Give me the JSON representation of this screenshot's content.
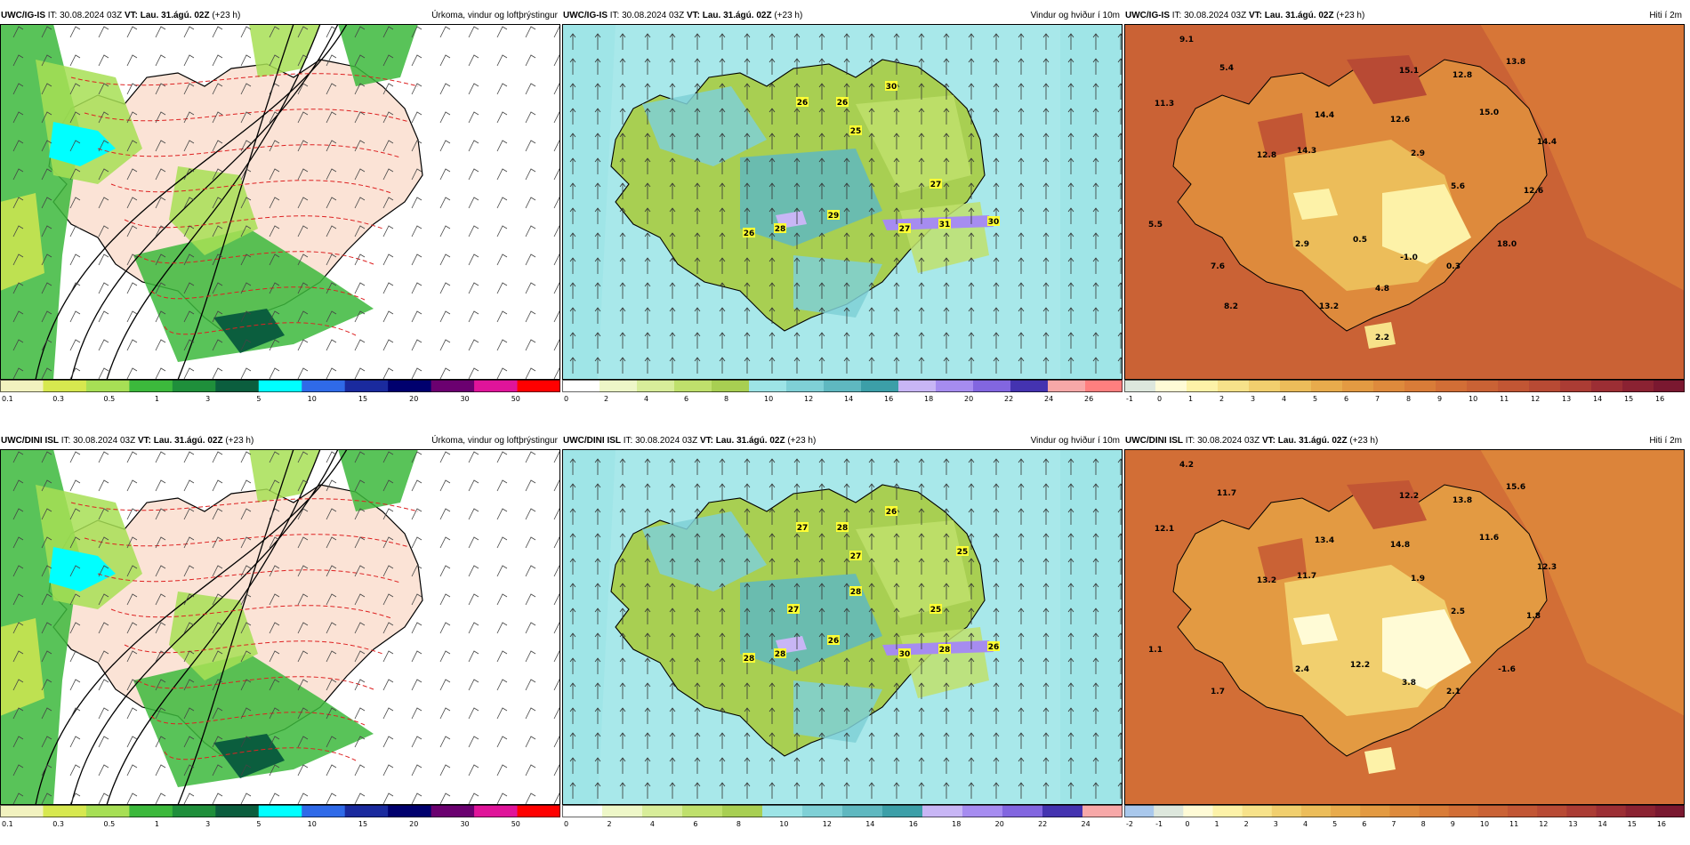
{
  "panels": [
    {
      "model": "UWC/IG-IS",
      "it_label": "IT:",
      "it": "30.08.2024 03Z",
      "vt_label": "VT:",
      "vt": "Lau. 31.ágú. 02Z",
      "lead": "(+23 h)",
      "title": "Úrkoma, vindur og loftþrýstingur",
      "kind": "precip",
      "colorbar": {
        "ticks": [
          "0.1",
          "0.3",
          "0.5",
          "1",
          "3",
          "5",
          "10",
          "15",
          "20",
          "30",
          "50"
        ],
        "colors": [
          "#f2f2bf",
          "#d7e84f",
          "#a7df55",
          "#3cb93c",
          "#1f8f3b",
          "#0b5e3e",
          "#00ffff",
          "#2f6ae8",
          "#1a2a9e",
          "#00006e",
          "#6b0070",
          "#e0149a",
          "#ff0000"
        ]
      },
      "map_labels": []
    },
    {
      "model": "UWC/IG-IS",
      "it_label": "IT:",
      "it": "30.08.2024 03Z",
      "vt_label": "VT:",
      "vt": "Lau. 31.ágú. 02Z",
      "lead": "(+23 h)",
      "title": "Vindur og hviður í 10m",
      "kind": "wind",
      "colorbar": {
        "ticks": [
          "0",
          "2",
          "4",
          "6",
          "8",
          "10",
          "12",
          "14",
          "16",
          "18",
          "20",
          "22",
          "24",
          "26"
        ],
        "colors": [
          "#ffffff",
          "#eef7c8",
          "#d8ed9a",
          "#bfe06c",
          "#a8cf52",
          "#9de4e6",
          "#7fd0d6",
          "#5fb8c0",
          "#3c9fa8",
          "#c8b6f5",
          "#a68cf0",
          "#8266e0",
          "#4433b0",
          "#f7a8a8",
          "#ff7f7f"
        ]
      },
      "map_labels": [
        "26",
        "26",
        "30",
        "25",
        "27",
        "29",
        "28",
        "26",
        "27",
        "31",
        "30"
      ]
    },
    {
      "model": "UWC/IG-IS",
      "it_label": "IT:",
      "it": "30.08.2024 03Z",
      "vt_label": "VT:",
      "vt": "Lau. 31.ágú. 02Z",
      "lead": "(+23 h)",
      "title": "Hiti í 2m",
      "kind": "temp",
      "colorbar": {
        "ticks": [
          "-1",
          "0",
          "1",
          "2",
          "3",
          "4",
          "5",
          "6",
          "7",
          "8",
          "9",
          "10",
          "11",
          "12",
          "13",
          "14",
          "15",
          "16"
        ],
        "colors": [
          "#dde7dd",
          "#fffbd6",
          "#fdf2a8",
          "#f7e28a",
          "#f1cf6e",
          "#ecbd5a",
          "#e8ab4c",
          "#e39a42",
          "#de8a3c",
          "#d97c38",
          "#d26e36",
          "#ca6235",
          "#c25634",
          "#b84a34",
          "#ab3c34",
          "#9c2e34",
          "#8b2232",
          "#7a1830"
        ]
      },
      "map_labels": [
        "9.1",
        "5.4",
        "11.3",
        "15.1",
        "12.8",
        "13.8",
        "14.4",
        "12.6",
        "15.0",
        "12.8",
        "14.3",
        "2.9",
        "14.4",
        "5.6",
        "12.6",
        "5.5",
        "2.9",
        "0.5",
        "18.0",
        "-1.0",
        "0.3",
        "7.6",
        "4.8",
        "8.2",
        "13.2",
        "2.2"
      ]
    },
    {
      "model": "UWC/DINI ISL",
      "it_label": "IT:",
      "it": "30.08.2024 03Z",
      "vt_label": "VT:",
      "vt": "Lau. 31.ágú. 02Z",
      "lead": "(+23 h)",
      "title": "Úrkoma, vindur og loftþrýstingur",
      "kind": "precip",
      "colorbar": {
        "ticks": [
          "0.1",
          "0.3",
          "0.5",
          "1",
          "3",
          "5",
          "10",
          "15",
          "20",
          "30",
          "50"
        ],
        "colors": [
          "#f2f2bf",
          "#d7e84f",
          "#a7df55",
          "#3cb93c",
          "#1f8f3b",
          "#0b5e3e",
          "#00ffff",
          "#2f6ae8",
          "#1a2a9e",
          "#00006e",
          "#6b0070",
          "#e0149a",
          "#ff0000"
        ]
      },
      "map_labels": []
    },
    {
      "model": "UWC/DINI ISL",
      "it_label": "IT:",
      "it": "30.08.2024 03Z",
      "vt_label": "VT:",
      "vt": "Lau. 31.ágú. 02Z",
      "lead": "(+23 h)",
      "title": "Vindur og hviður í 10m",
      "kind": "wind",
      "colorbar": {
        "ticks": [
          "0",
          "2",
          "4",
          "6",
          "8",
          "10",
          "12",
          "14",
          "16",
          "18",
          "20",
          "22",
          "24"
        ],
        "colors": [
          "#ffffff",
          "#eef7c8",
          "#d8ed9a",
          "#bfe06c",
          "#a8cf52",
          "#9de4e6",
          "#7fd0d6",
          "#5fb8c0",
          "#3c9fa8",
          "#c8b6f5",
          "#a68cf0",
          "#8266e0",
          "#4433b0",
          "#f7a8a8"
        ]
      },
      "map_labels": [
        "27",
        "28",
        "26",
        "27",
        "25",
        "26",
        "28",
        "28",
        "30",
        "28",
        "26",
        "27",
        "28",
        "25"
      ]
    },
    {
      "model": "UWC/DINI ISL",
      "it_label": "IT:",
      "it": "30.08.2024 03Z",
      "vt_label": "VT:",
      "vt": "Lau. 31.ágú. 02Z",
      "lead": "(+23 h)",
      "title": "Hiti í 2m",
      "kind": "temp",
      "colorbar": {
        "ticks": [
          "-2",
          "-1",
          "0",
          "1",
          "2",
          "3",
          "4",
          "5",
          "6",
          "7",
          "8",
          "9",
          "10",
          "11",
          "12",
          "13",
          "14",
          "15",
          "16"
        ],
        "colors": [
          "#a9c8ec",
          "#dde7dd",
          "#fffbd6",
          "#fdf2a8",
          "#f7e28a",
          "#f1cf6e",
          "#ecbd5a",
          "#e8ab4c",
          "#e39a42",
          "#de8a3c",
          "#d97c38",
          "#d26e36",
          "#ca6235",
          "#c25634",
          "#b84a34",
          "#ab3c34",
          "#9c2e34",
          "#8b2232",
          "#7a1830"
        ]
      },
      "map_labels": [
        "4.2",
        "11.7",
        "12.1",
        "12.2",
        "13.8",
        "15.6",
        "13.4",
        "14.8",
        "11.6",
        "13.2",
        "11.7",
        "1.9",
        "12.3",
        "2.5",
        "1.8",
        "1.1",
        "2.4",
        "12.2",
        "-1.6",
        "3.8",
        "2.1",
        "1.7"
      ]
    }
  ]
}
